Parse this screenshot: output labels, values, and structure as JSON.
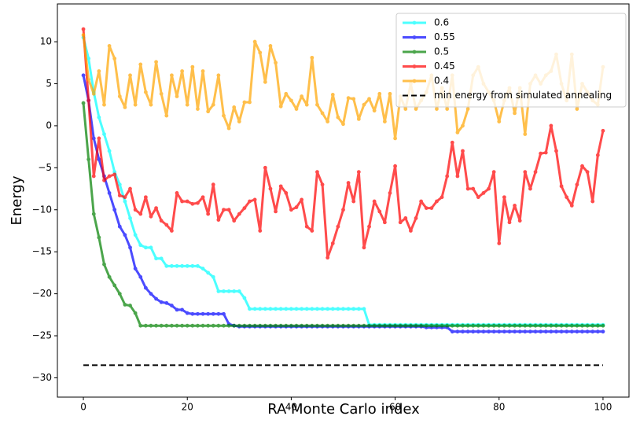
{
  "chart_data": {
    "type": "line",
    "xlabel": "RA Monte Carlo index",
    "ylabel": "Energy",
    "xlim": [
      -5,
      105
    ],
    "ylim": [
      -32.3,
      14.5
    ],
    "xticks": [
      0,
      20,
      40,
      60,
      80,
      100
    ],
    "yticks": [
      {
        "value": -30,
        "label": "−30"
      },
      {
        "value": -25,
        "label": "−25"
      },
      {
        "value": -20,
        "label": "−20"
      },
      {
        "value": -15,
        "label": "−15"
      },
      {
        "value": -10,
        "label": "−10"
      },
      {
        "value": -5,
        "label": "−5"
      },
      0,
      5,
      10
    ],
    "legend": "upper right",
    "grid": false,
    "x": [
      0,
      1,
      2,
      3,
      4,
      5,
      6,
      7,
      8,
      9,
      10,
      11,
      12,
      13,
      14,
      15,
      16,
      17,
      18,
      19,
      20,
      21,
      22,
      23,
      24,
      25,
      26,
      27,
      28,
      29,
      30,
      31,
      32,
      33,
      34,
      35,
      36,
      37,
      38,
      39,
      40,
      41,
      42,
      43,
      44,
      45,
      46,
      47,
      48,
      49,
      50,
      51,
      52,
      53,
      54,
      55,
      56,
      57,
      58,
      59,
      60,
      61,
      62,
      63,
      64,
      65,
      66,
      67,
      68,
      69,
      70,
      71,
      72,
      73,
      74,
      75,
      76,
      77,
      78,
      79,
      80,
      81,
      82,
      83,
      84,
      85,
      86,
      87,
      88,
      89,
      90,
      91,
      92,
      93,
      94,
      95,
      96,
      97,
      98,
      99,
      100
    ],
    "series": [
      {
        "name": "0.6",
        "color": "#00ffff",
        "values": [
          10.5,
          8,
          4,
          1,
          -1,
          -3,
          -5.5,
          -7,
          -9,
          -11,
          -13,
          -14.2,
          -14.5,
          -14.5,
          -15.8,
          -15.8,
          -16.7,
          -16.7,
          -16.7,
          -16.7,
          -16.7,
          -16.7,
          -16.7,
          -17,
          -17.5,
          -18,
          -19.7,
          -19.7,
          -19.7,
          -19.7,
          -19.7,
          -20.5,
          -21.8,
          -21.8,
          -21.8,
          -21.8,
          -21.8,
          -21.8,
          -21.8,
          -21.8,
          -21.8,
          -21.8,
          -21.8,
          -21.8,
          -21.8,
          -21.8,
          -21.8,
          -21.8,
          -21.8,
          -21.8,
          -21.8,
          -21.8,
          -21.8,
          -21.8,
          -21.8,
          -23.7,
          -23.7,
          -23.7,
          -23.7,
          -23.7,
          -23.7,
          -23.7,
          -23.7,
          -23.7,
          -23.7,
          -23.7,
          -23.7,
          -23.7,
          -23.7,
          -23.7,
          -23.7,
          -23.7,
          -23.7,
          -23.7,
          -23.7,
          -23.7,
          -23.7,
          -23.7,
          -23.7,
          -23.7,
          -23.7,
          -23.7,
          -23.7,
          -23.7,
          -23.7,
          -23.7,
          -23.7,
          -23.7,
          -23.7,
          -23.7,
          -23.7,
          -23.7,
          -23.7,
          -23.7,
          -23.7,
          -23.7,
          -23.7,
          -23.7,
          -23.7,
          -23.7,
          -23.7
        ]
      },
      {
        "name": "0.55",
        "color": "#0000ff",
        "values": [
          6,
          3,
          -1.5,
          -4,
          -6,
          -8,
          -10,
          -12,
          -13,
          -14.5,
          -17,
          -18,
          -19.3,
          -20,
          -20.6,
          -21,
          -21.1,
          -21.4,
          -21.9,
          -21.9,
          -22.3,
          -22.4,
          -22.4,
          -22.4,
          -22.4,
          -22.4,
          -22.4,
          -22.4,
          -23.6,
          -23.8,
          -23.9,
          -23.9,
          -23.9,
          -23.9,
          -23.9,
          -23.9,
          -23.9,
          -23.9,
          -23.9,
          -23.9,
          -23.9,
          -23.9,
          -23.9,
          -23.9,
          -23.9,
          -23.9,
          -23.9,
          -23.9,
          -23.9,
          -23.9,
          -23.9,
          -23.9,
          -23.9,
          -23.9,
          -23.9,
          -23.9,
          -23.9,
          -23.9,
          -23.9,
          -23.9,
          -23.9,
          -23.9,
          -23.9,
          -23.9,
          -23.9,
          -23.9,
          -24,
          -24,
          -24,
          -24,
          -24,
          -24.5,
          -24.5,
          -24.5,
          -24.5,
          -24.5,
          -24.5,
          -24.5,
          -24.5,
          -24.5,
          -24.5,
          -24.5,
          -24.5,
          -24.5,
          -24.5,
          -24.5,
          -24.5,
          -24.5,
          -24.5,
          -24.5,
          -24.5,
          -24.5,
          -24.5,
          -24.5,
          -24.5,
          -24.5,
          -24.5,
          -24.5,
          -24.5,
          -24.5,
          -24.5
        ]
      },
      {
        "name": "0.5",
        "color": "#008000",
        "values": [
          2.7,
          -4,
          -10.5,
          -13.3,
          -16.5,
          -18,
          -19,
          -20,
          -21.3,
          -21.4,
          -22.3,
          -23.8,
          -23.8,
          -23.8,
          -23.8,
          -23.8,
          -23.8,
          -23.8,
          -23.8,
          -23.8,
          -23.8,
          -23.8,
          -23.8,
          -23.8,
          -23.8,
          -23.8,
          -23.8,
          -23.8,
          -23.8,
          -23.8,
          -23.8,
          -23.8,
          -23.8,
          -23.8,
          -23.8,
          -23.8,
          -23.8,
          -23.8,
          -23.8,
          -23.8,
          -23.8,
          -23.8,
          -23.8,
          -23.8,
          -23.8,
          -23.8,
          -23.8,
          -23.8,
          -23.8,
          -23.8,
          -23.8,
          -23.8,
          -23.8,
          -23.8,
          -23.8,
          -23.8,
          -23.8,
          -23.8,
          -23.8,
          -23.8,
          -23.8,
          -23.8,
          -23.8,
          -23.8,
          -23.8,
          -23.8,
          -23.8,
          -23.8,
          -23.8,
          -23.8,
          -23.8,
          -23.8,
          -23.8,
          -23.8,
          -23.8,
          -23.8,
          -23.8,
          -23.8,
          -23.8,
          -23.8,
          -23.8,
          -23.8,
          -23.8,
          -23.8,
          -23.8,
          -23.8,
          -23.8,
          -23.8,
          -23.8,
          -23.8,
          -23.8,
          -23.8,
          -23.8,
          -23.8,
          -23.8,
          -23.8,
          -23.8,
          -23.8,
          -23.8,
          -23.8,
          -23.8
        ]
      },
      {
        "name": "0.45",
        "color": "#ff0000",
        "values": [
          11.5,
          3,
          -6,
          -1.5,
          -6.5,
          -6,
          -5.8,
          -8.3,
          -8.5,
          -7.5,
          -10,
          -10.5,
          -8.5,
          -10.8,
          -9.8,
          -11.3,
          -11.8,
          -12.5,
          -8,
          -9,
          -9,
          -9.3,
          -9.2,
          -8.5,
          -10.5,
          -7,
          -11.2,
          -10,
          -10,
          -11.3,
          -10.5,
          -9.8,
          -9,
          -8.8,
          -12.5,
          -5,
          -7.5,
          -10.2,
          -7.2,
          -8,
          -10,
          -9.7,
          -8.8,
          -12,
          -12.5,
          -5.5,
          -7,
          -15.7,
          -14,
          -12,
          -10,
          -6.8,
          -9,
          -5.5,
          -14.5,
          -12,
          -9,
          -10.2,
          -11.5,
          -8,
          -4.8,
          -11.5,
          -11,
          -12.5,
          -11,
          -9,
          -9.8,
          -9.8,
          -9,
          -8.5,
          -6,
          -2,
          -6,
          -3,
          -7.5,
          -7.5,
          -8.5,
          -8,
          -7.5,
          -5.5,
          -14,
          -8.5,
          -11.5,
          -9.5,
          -11.3,
          -5.5,
          -7.5,
          -5.5,
          -3.3,
          -3.2,
          0,
          -3,
          -7.2,
          -8.5,
          -9.5,
          -7,
          -4.8,
          -5.5,
          -9,
          -3.5,
          -0.6
        ]
      },
      {
        "name": "0.4",
        "color": "#ffa500",
        "values": [
          10.8,
          5.5,
          3.8,
          6.5,
          2.5,
          9.5,
          8,
          3.5,
          2.2,
          6,
          2.5,
          7.3,
          4,
          2.5,
          7.6,
          3.8,
          1.2,
          6,
          3.5,
          6.5,
          2.5,
          7,
          2,
          6.5,
          1.7,
          2.5,
          6,
          1.2,
          -0.3,
          2.2,
          0.5,
          2.8,
          2.8,
          10,
          8.7,
          5.2,
          9.5,
          7.5,
          2.3,
          3.8,
          3,
          2,
          3.5,
          2.5,
          8.1,
          2.5,
          1.5,
          0.5,
          3.7,
          1,
          0.2,
          3.3,
          3.2,
          0.8,
          2.5,
          3.2,
          1.8,
          3.8,
          0.5,
          3.8,
          -1.5,
          3.5,
          2,
          5,
          2,
          3,
          4,
          6,
          2,
          4.5,
          2,
          6,
          -0.8,
          0,
          2,
          6,
          7,
          5,
          4,
          3,
          0.5,
          3,
          4.5,
          1.5,
          4.5,
          -1,
          5,
          6,
          5,
          6,
          6.5,
          8.5,
          5,
          3,
          8.5,
          2,
          5,
          4,
          3,
          2.5,
          7
        ]
      }
    ],
    "hlines": [
      {
        "name": "min energy from simulated annealing",
        "color": "#000000",
        "value": -28.5,
        "xmin": 0,
        "xmax": 100,
        "style": "dashed"
      }
    ]
  }
}
